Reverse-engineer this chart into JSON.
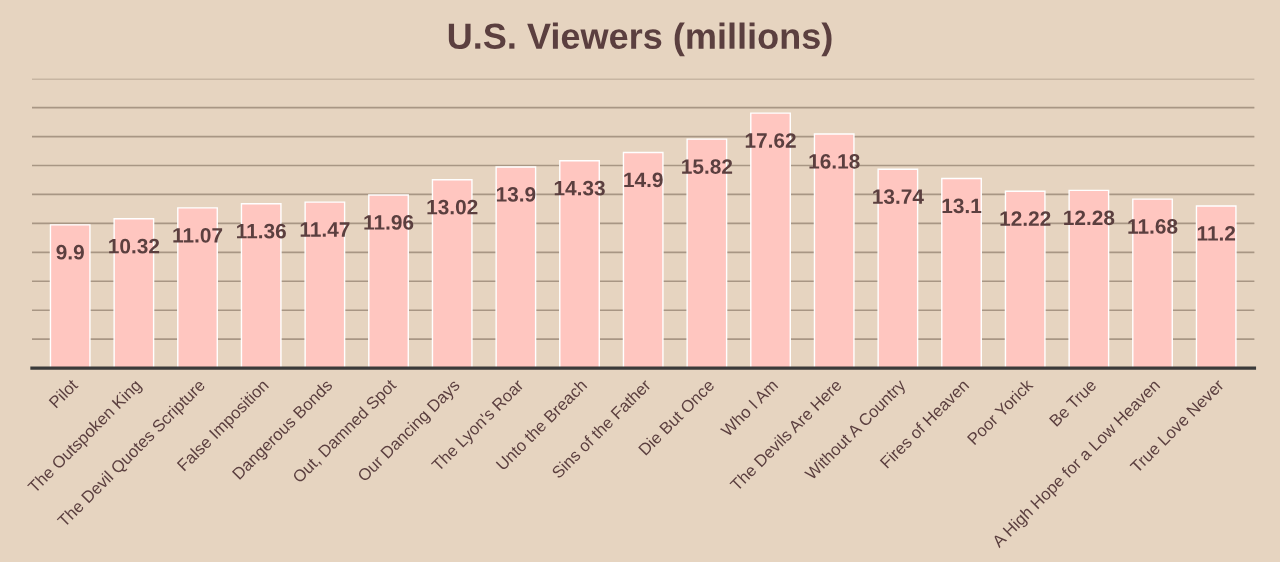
{
  "chart_data": {
    "type": "bar",
    "title": "U.S. Viewers (millions)",
    "categories": [
      "Pilot",
      "The Outspoken King",
      "The Devil Quotes Scripture",
      "False Imposition",
      "Dangerous Bonds",
      "Out, Damned Spot",
      "Our Dancing Days",
      "The Lyon's Roar",
      "Unto the Breach",
      "Sins of the Father",
      "Die But Once",
      "Who I Am",
      "The Devils Are Here",
      "Without A Country",
      "Fires of Heaven",
      "Poor Yorick",
      "Be True",
      "A High Hope for a Low Heaven",
      "True Love Never"
    ],
    "values": [
      9.9,
      10.32,
      11.07,
      11.36,
      11.47,
      11.96,
      13.02,
      13.9,
      14.33,
      14.9,
      15.82,
      17.62,
      16.18,
      13.74,
      13.1,
      12.22,
      12.28,
      11.68,
      11.2
    ],
    "color": "#ffc6c0",
    "data_labels": true,
    "ylim": [
      0,
      20
    ],
    "yticks": [
      {
        "value": 0,
        "label": null
      },
      {
        "value": 2,
        "label": null
      },
      {
        "value": 4,
        "label": null
      },
      {
        "value": 6,
        "label": null
      },
      {
        "value": 8,
        "label": null
      },
      {
        "value": 10,
        "label": null
      },
      {
        "value": 12,
        "label": null
      },
      {
        "value": 14,
        "label": null
      },
      {
        "value": 16,
        "label": null
      },
      {
        "value": 18,
        "label": null
      },
      {
        "value": 20,
        "label": null
      }
    ],
    "grid": "y",
    "tick_labels": "x"
  }
}
